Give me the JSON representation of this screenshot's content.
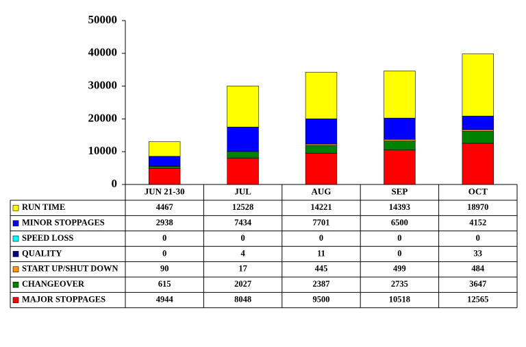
{
  "chart_data": {
    "type": "stacked_bar",
    "categories": [
      "JUN 21-30",
      "JUL",
      "AUG",
      "SEP",
      "OCT"
    ],
    "series": [
      {
        "name": "RUN TIME",
        "color": "#ffff00",
        "values": [
          4467,
          12528,
          14221,
          14393,
          18970
        ]
      },
      {
        "name": "MINOR STOPPAGES",
        "color": "#0000ff",
        "values": [
          2938,
          7434,
          7701,
          6500,
          4152
        ]
      },
      {
        "name": "SPEED LOSS",
        "color": "#00ffff",
        "values": [
          0,
          0,
          0,
          0,
          0
        ]
      },
      {
        "name": "QUALITY",
        "color": "#000080",
        "values": [
          0,
          4,
          11,
          0,
          33
        ]
      },
      {
        "name": "START UP/SHUT DOWN",
        "color": "#ff9900",
        "values": [
          90,
          17,
          445,
          499,
          484
        ]
      },
      {
        "name": "CHANGEOVER",
        "color": "#008000",
        "values": [
          615,
          2027,
          2387,
          2735,
          3647
        ]
      },
      {
        "name": "MAJOR STOPPAGES",
        "color": "#ff0000",
        "values": [
          4944,
          8048,
          9500,
          10518,
          12565
        ]
      }
    ],
    "ylim": [
      0,
      50000
    ],
    "yticks": [
      0,
      10000,
      20000,
      30000,
      40000,
      50000
    ],
    "grid": false
  }
}
